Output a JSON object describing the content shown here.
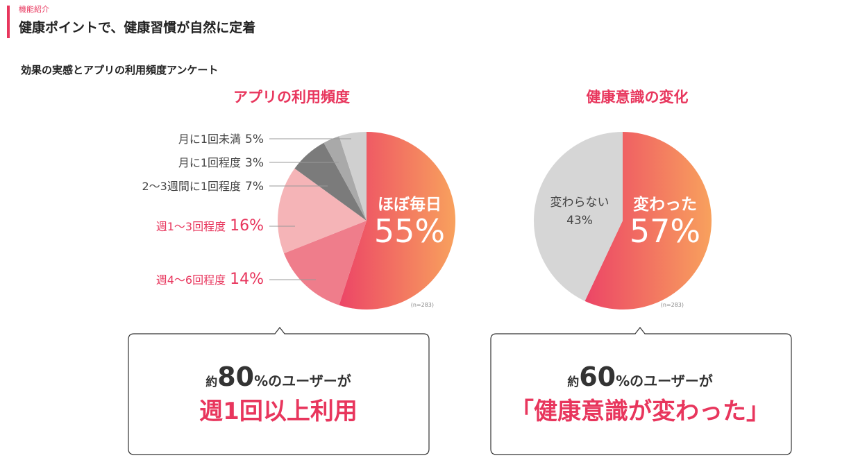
{
  "header": {
    "label": "機能紹介",
    "title": "健康ポイントで、健康習慣が自然に定着",
    "subtitle": "効果の実感とアプリの利用頻度アンケート"
  },
  "chart_data": [
    {
      "type": "pie",
      "title": "アプリの利用頻度",
      "note": "(n=283)",
      "categories": [
        "ほぼ毎日",
        "週4〜6回程度",
        "週1〜3回程度",
        "2〜3週間に1回程度",
        "月に1回程度",
        "月に1回未満"
      ],
      "values": [
        55,
        14,
        16,
        7,
        3,
        5
      ],
      "value_labels": [
        "55%",
        "14%",
        "16%",
        "7%",
        "3%",
        "5%"
      ],
      "colors": [
        "#ec4566",
        "#ef7d8b",
        "#f5b4b7",
        "#7b7b7b",
        "#a9a9a9",
        "#d0d0d0"
      ]
    },
    {
      "type": "pie",
      "title": "健康意識の変化",
      "note": "(n=283)",
      "categories": [
        "変わった",
        "変わらない"
      ],
      "values": [
        57,
        43
      ],
      "value_labels": [
        "57%",
        "43%"
      ],
      "colors": [
        "#ec4566",
        "#d6d6d6"
      ]
    }
  ],
  "callouts": [
    {
      "prefix": "約",
      "number": "80",
      "suffix": "%のユーザーが",
      "emphasis": "週1回以上利用"
    },
    {
      "prefix": "約",
      "number": "60",
      "suffix": "%のユーザーが",
      "emphasis": "「健康意識が変わった」"
    }
  ]
}
